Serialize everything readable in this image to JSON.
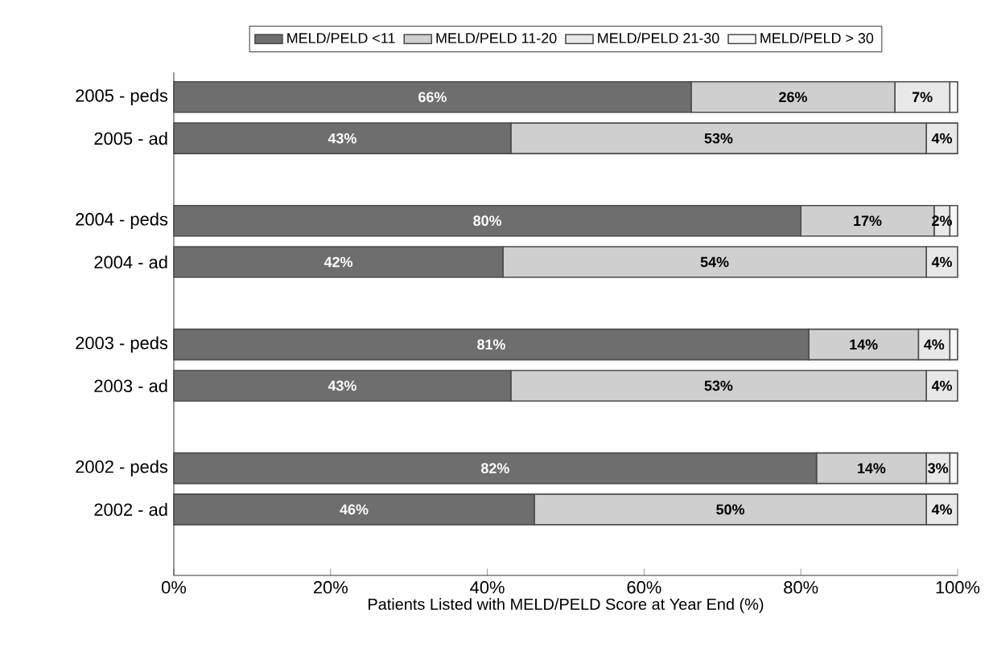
{
  "chart_data": {
    "type": "bar",
    "orientation": "horizontal",
    "stacked": true,
    "xlabel": "Patients Listed with MELD/PELD Score at Year End (%)",
    "categories": [
      "2005 - peds",
      "2005 - ad",
      null,
      "2004 - peds",
      "2004 - ad",
      null,
      "2003 - peds",
      "2003 - ad",
      null,
      "2002 - peds",
      "2002 - ad"
    ],
    "series": [
      {
        "name": "MELD/PELD <11",
        "color": "#6e6e6e",
        "values": [
          66,
          43,
          null,
          80,
          42,
          null,
          81,
          43,
          null,
          82,
          46
        ],
        "value_labels": [
          "66%",
          "43%",
          null,
          "80%",
          "42%",
          null,
          "81%",
          "43%",
          null,
          "82%",
          "46%"
        ]
      },
      {
        "name": "MELD/PELD 11-20",
        "color": "#cfcfcf",
        "values": [
          26,
          53,
          null,
          17,
          54,
          null,
          14,
          53,
          null,
          14,
          50
        ],
        "value_labels": [
          "26%",
          "53%",
          null,
          "17%",
          "54%",
          null,
          "14%",
          "53%",
          null,
          "14%",
          "50%"
        ]
      },
      {
        "name": "MELD/PELD 21-30",
        "color": "#e8e8e8",
        "values": [
          7,
          4,
          null,
          2,
          4,
          null,
          4,
          4,
          null,
          3,
          4
        ],
        "value_labels": [
          "7%",
          "4%",
          null,
          "2%",
          "4%",
          null,
          "4%",
          "4%",
          null,
          "3%",
          "4%"
        ]
      },
      {
        "name": "MELD/PELD > 30",
        "color": "#f7f7f7",
        "values": [
          1,
          0,
          null,
          1,
          0,
          null,
          1,
          0,
          null,
          1,
          0
        ]
      }
    ],
    "xlim": [
      0,
      100
    ],
    "xticks": [
      {
        "value": 0,
        "label": "0%"
      },
      {
        "value": 20,
        "label": "20%"
      },
      {
        "value": 40,
        "label": "40%"
      },
      {
        "value": 60,
        "label": "60%"
      },
      {
        "value": 80,
        "label": "80%"
      },
      {
        "value": 100,
        "label": "100%"
      }
    ],
    "legend": "top",
    "grid": false
  }
}
